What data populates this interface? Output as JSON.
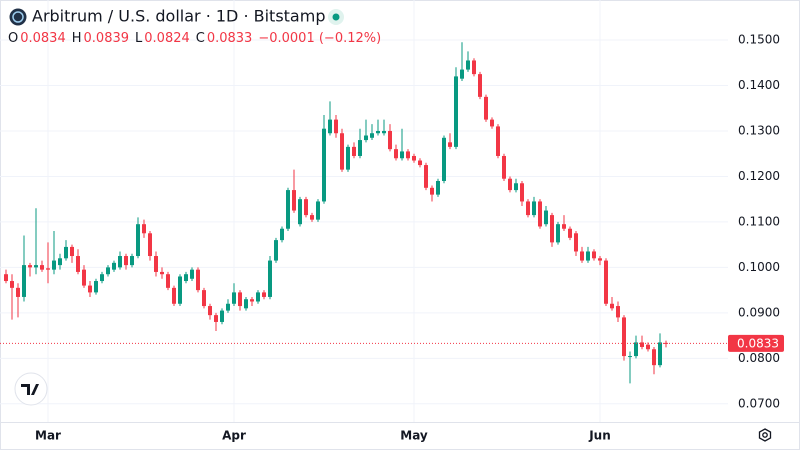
{
  "chart_data": {
    "type": "candlestick",
    "title": "Arbitrum / U.S. dollar · 1D · Bitstamp",
    "ohlc_labels": [
      "O",
      "H",
      "L",
      "C"
    ],
    "change_label": "−0.0001 (−0.12%)",
    "up_color": "#089981",
    "down_color": "#f23645",
    "grid": true,
    "ylim": [
      0.066,
      0.1588
    ],
    "yticks": [
      {
        "value": 0.07,
        "label": "0.0700"
      },
      {
        "value": 0.08,
        "label": "0.0800"
      },
      {
        "value": 0.09,
        "label": "0.0900"
      },
      {
        "value": 0.1,
        "label": "0.1000"
      },
      {
        "value": 0.11,
        "label": "0.1100"
      },
      {
        "value": 0.12,
        "label": "0.1200"
      },
      {
        "value": 0.13,
        "label": "0.1300"
      },
      {
        "value": 0.14,
        "label": "0.1400"
      },
      {
        "value": 0.15,
        "label": "0.1500"
      }
    ],
    "categories": [
      null,
      null,
      null,
      null,
      null,
      null,
      null,
      "Mar",
      null,
      null,
      null,
      null,
      null,
      null,
      null,
      null,
      null,
      null,
      null,
      null,
      null,
      null,
      null,
      null,
      null,
      null,
      null,
      null,
      null,
      null,
      null,
      null,
      null,
      null,
      null,
      null,
      null,
      null,
      "Apr",
      null,
      null,
      null,
      null,
      null,
      null,
      null,
      null,
      null,
      null,
      null,
      null,
      null,
      null,
      null,
      null,
      null,
      null,
      null,
      null,
      null,
      null,
      null,
      null,
      null,
      null,
      null,
      null,
      null,
      "May",
      null,
      null,
      null,
      null,
      null,
      null,
      null,
      null,
      null,
      null,
      null,
      null,
      null,
      null,
      null,
      null,
      null,
      null,
      null,
      null,
      null,
      null,
      null,
      null,
      null,
      null,
      null,
      null,
      null,
      null,
      "Jun",
      null,
      null,
      null,
      null,
      null,
      null,
      null,
      null,
      null,
      null,
      null
    ],
    "open": [
      0.0985,
      0.097,
      0.0955,
      0.0935,
      0.1005,
      0.1,
      0.1005,
      0.0998,
      0.0995,
      0.1005,
      0.102,
      0.1045,
      0.1025,
      0.0995,
      0.096,
      0.0945,
      0.097,
      0.0985,
      0.0995,
      0.1,
      0.1025,
      0.1005,
      0.1025,
      0.1095,
      0.1075,
      0.1025,
      0.099,
      0.0985,
      0.0955,
      0.092,
      0.097,
      0.0975,
      0.0995,
      0.095,
      0.0915,
      0.0895,
      0.088,
      0.0905,
      0.092,
      0.0945,
      0.091,
      0.093,
      0.0925,
      0.0945,
      0.0935,
      0.1015,
      0.106,
      0.1085,
      0.117,
      0.1095,
      0.115,
      0.1115,
      0.1105,
      0.1145,
      0.1295,
      0.1325,
      0.1295,
      0.1215,
      0.1265,
      0.1245,
      0.128,
      0.1285,
      0.1295,
      0.1295,
      0.13,
      0.126,
      0.124,
      0.1255,
      0.1245,
      0.1235,
      0.1225,
      0.1175,
      0.116,
      0.119,
      0.1275,
      0.1265,
      0.1415,
      0.1435,
      0.1455,
      0.1425,
      0.1375,
      0.1325,
      0.131,
      0.1245,
      0.1195,
      0.117,
      0.1185,
      0.1145,
      0.1115,
      0.1145,
      0.1095,
      0.1115,
      0.1055,
      0.1095,
      0.1085,
      0.1075,
      0.1035,
      0.1015,
      0.1035,
      0.102,
      0.1015,
      0.092,
      0.0915,
      0.089,
      0.0805,
      0.0805,
      0.0835,
      0.083,
      0.082,
      0.0785,
      0.0834
    ],
    "high": [
      0.0995,
      0.0985,
      0.0965,
      0.107,
      0.101,
      0.113,
      0.1015,
      0.1055,
      0.108,
      0.103,
      0.106,
      0.105,
      0.104,
      0.1005,
      0.097,
      0.0975,
      0.099,
      0.1005,
      0.1015,
      0.1035,
      0.103,
      0.103,
      0.111,
      0.1105,
      0.108,
      0.1035,
      0.1,
      0.099,
      0.096,
      0.0985,
      0.099,
      0.1,
      0.1,
      0.0955,
      0.092,
      0.09,
      0.091,
      0.093,
      0.0965,
      0.095,
      0.0935,
      0.0935,
      0.095,
      0.095,
      0.1025,
      0.1065,
      0.109,
      0.1175,
      0.1215,
      0.1155,
      0.1155,
      0.112,
      0.115,
      0.1335,
      0.1365,
      0.1335,
      0.1305,
      0.127,
      0.1275,
      0.1305,
      0.1325,
      0.1315,
      0.1325,
      0.1325,
      0.1315,
      0.127,
      0.1305,
      0.126,
      0.125,
      0.124,
      0.123,
      0.118,
      0.1195,
      0.129,
      0.1295,
      0.144,
      0.1495,
      0.1475,
      0.146,
      0.143,
      0.138,
      0.133,
      0.1315,
      0.125,
      0.12,
      0.1195,
      0.119,
      0.115,
      0.1155,
      0.115,
      0.1135,
      0.112,
      0.11,
      0.1115,
      0.109,
      0.108,
      0.1045,
      0.1045,
      0.104,
      0.1025,
      0.102,
      0.0935,
      0.0925,
      0.0895,
      0.0815,
      0.085,
      0.085,
      0.0835,
      0.0825,
      0.0855,
      0.0839
    ],
    "low": [
      0.0965,
      0.0885,
      0.089,
      0.0925,
      0.098,
      0.0985,
      0.099,
      0.0965,
      0.0985,
      0.0995,
      0.1015,
      0.101,
      0.0985,
      0.0955,
      0.0935,
      0.094,
      0.0965,
      0.098,
      0.099,
      0.0995,
      0.0995,
      0.1,
      0.102,
      0.1065,
      0.1015,
      0.098,
      0.0975,
      0.095,
      0.0915,
      0.0915,
      0.0965,
      0.097,
      0.0945,
      0.091,
      0.0885,
      0.086,
      0.0875,
      0.09,
      0.0915,
      0.0905,
      0.0905,
      0.0915,
      0.092,
      0.093,
      0.093,
      0.101,
      0.1055,
      0.108,
      0.112,
      0.109,
      0.111,
      0.11,
      0.11,
      0.114,
      0.129,
      0.1285,
      0.121,
      0.121,
      0.124,
      0.124,
      0.1275,
      0.128,
      0.129,
      0.129,
      0.1255,
      0.1235,
      0.1235,
      0.1235,
      0.123,
      0.122,
      0.117,
      0.1145,
      0.1155,
      0.1185,
      0.126,
      0.126,
      0.141,
      0.143,
      0.142,
      0.137,
      0.132,
      0.1305,
      0.124,
      0.119,
      0.1165,
      0.1165,
      0.1135,
      0.111,
      0.111,
      0.1085,
      0.109,
      0.1045,
      0.105,
      0.108,
      0.106,
      0.1025,
      0.101,
      0.101,
      0.1015,
      0.1005,
      0.0915,
      0.0905,
      0.088,
      0.0795,
      0.0745,
      0.08,
      0.082,
      0.0815,
      0.0765,
      0.078,
      0.0824
    ],
    "close": [
      0.097,
      0.0955,
      0.0935,
      0.1005,
      0.1,
      0.1005,
      0.0995,
      0.0995,
      0.1015,
      0.102,
      0.1045,
      0.1025,
      0.099,
      0.096,
      0.0945,
      0.097,
      0.0985,
      0.1,
      0.101,
      0.1025,
      0.1005,
      0.1025,
      0.1095,
      0.1075,
      0.1025,
      0.099,
      0.0985,
      0.0955,
      0.092,
      0.098,
      0.0985,
      0.0995,
      0.095,
      0.0915,
      0.0895,
      0.088,
      0.0905,
      0.092,
      0.0945,
      0.0915,
      0.093,
      0.0925,
      0.0945,
      0.0935,
      0.1015,
      0.106,
      0.1085,
      0.117,
      0.1125,
      0.115,
      0.1115,
      0.1105,
      0.1145,
      0.1305,
      0.1325,
      0.1295,
      0.1215,
      0.1265,
      0.1245,
      0.128,
      0.129,
      0.1295,
      0.13,
      0.13,
      0.126,
      0.124,
      0.1255,
      0.124,
      0.1235,
      0.1225,
      0.1175,
      0.116,
      0.119,
      0.1285,
      0.1265,
      0.142,
      0.1435,
      0.1455,
      0.1425,
      0.1375,
      0.1325,
      0.131,
      0.1245,
      0.1195,
      0.117,
      0.1185,
      0.1145,
      0.1115,
      0.1145,
      0.109,
      0.1125,
      0.1055,
      0.1095,
      0.1085,
      0.1065,
      0.1035,
      0.1015,
      0.1035,
      0.102,
      0.1015,
      0.092,
      0.091,
      0.089,
      0.0805,
      0.0805,
      0.0835,
      0.0825,
      0.082,
      0.0785,
      0.0835,
      0.0833
    ]
  }
}
